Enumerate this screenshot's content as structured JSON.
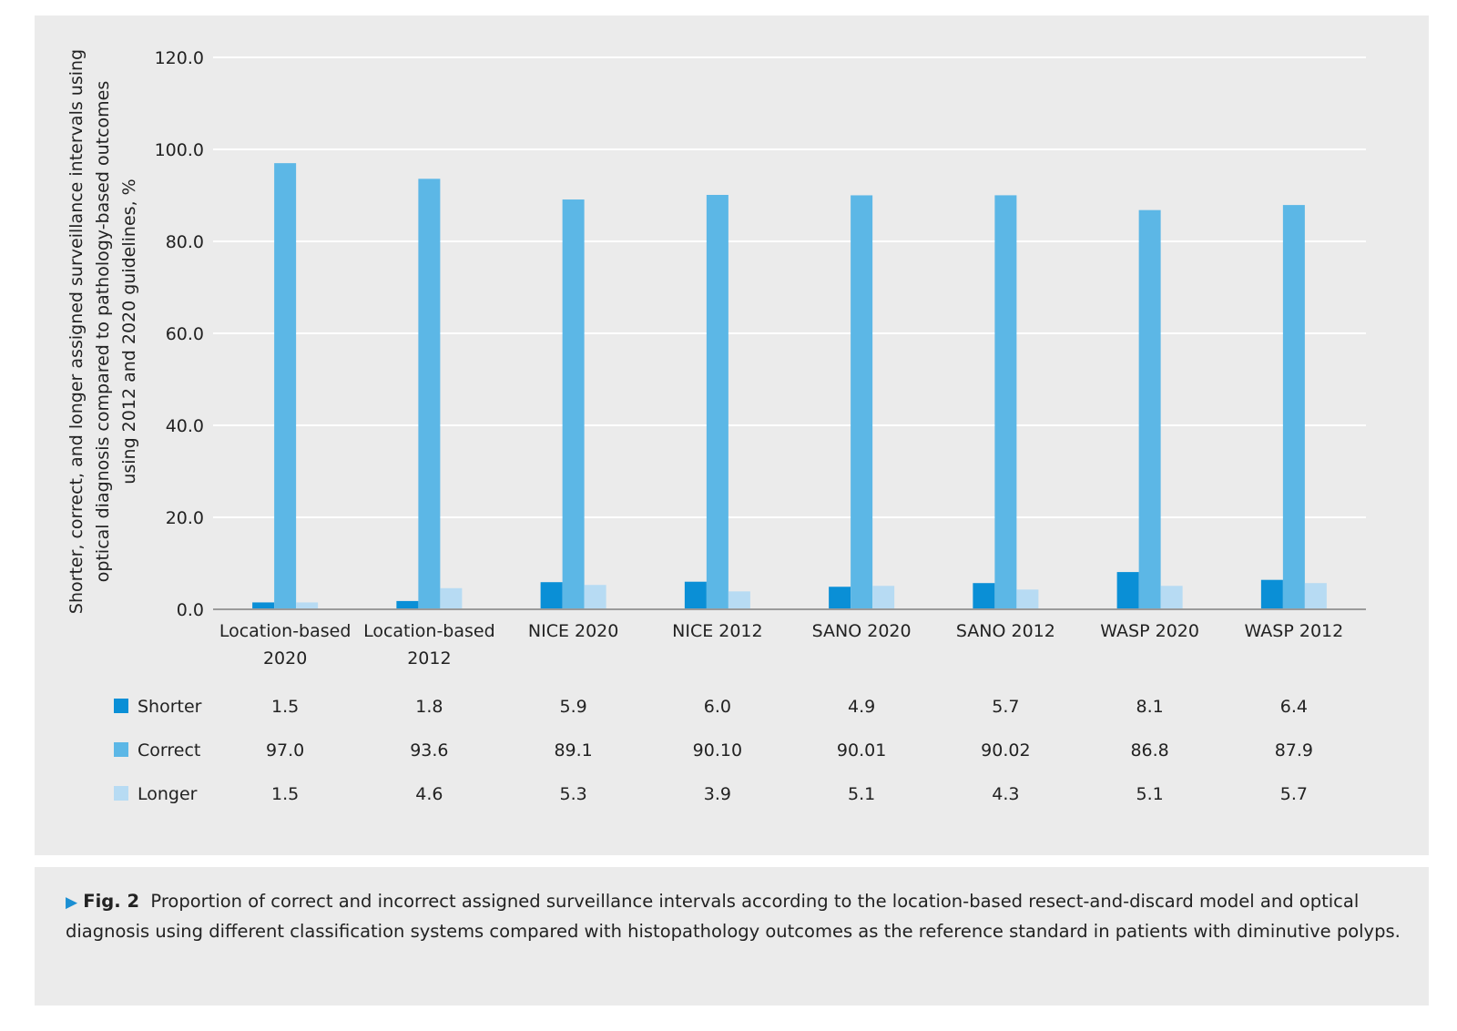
{
  "chart_data": {
    "type": "bar",
    "title": "",
    "xlabel": "",
    "ylabel_lines": [
      "Shorter, correct, and longer assigned surveillance intervals using",
      "optical diagnosis compared to pathology-based outcomes",
      "using 2012 and 2020 guidelines, %"
    ],
    "ylim": [
      0,
      120
    ],
    "yticks": [
      "0.0",
      "20.0",
      "40.0",
      "60.0",
      "80.0",
      "100.0",
      "120.0"
    ],
    "grid": true,
    "categories": [
      [
        "Location-based",
        "2020"
      ],
      [
        "Location-based",
        "2012"
      ],
      [
        "NICE 2020"
      ],
      [
        "NICE 2012"
      ],
      [
        "SANO 2020"
      ],
      [
        "SANO 2012"
      ],
      [
        "WASP 2020"
      ],
      [
        "WASP 2012"
      ]
    ],
    "series": [
      {
        "name": "Shorter",
        "color": "#0a8fd6",
        "values": [
          1.5,
          1.8,
          5.9,
          6.0,
          4.9,
          5.7,
          8.1,
          6.4
        ],
        "labels": [
          "1.5",
          "1.8",
          "5.9",
          "6.0",
          "4.9",
          "5.7",
          "8.1",
          "6.4"
        ]
      },
      {
        "name": "Correct",
        "color": "#5cb7e6",
        "values": [
          97.0,
          93.6,
          89.1,
          90.1,
          90.01,
          90.02,
          86.8,
          87.9
        ],
        "labels": [
          "97.0",
          "93.6",
          "89.1",
          "90.10",
          "90.01",
          "90.02",
          "86.8",
          "87.9"
        ]
      },
      {
        "name": "Longer",
        "color": "#b7dbf3",
        "values": [
          1.5,
          4.6,
          5.3,
          3.9,
          5.1,
          4.3,
          5.1,
          5.7
        ],
        "labels": [
          "1.5",
          "4.6",
          "5.3",
          "3.9",
          "5.1",
          "4.3",
          "5.1",
          "5.7"
        ]
      }
    ]
  },
  "caption": {
    "arrow": "▶",
    "fig_label": "Fig. 2",
    "text": "Proportion of correct and incorrect assigned surveillance intervals according to the location-based resect-and-discard model and optical diagnosis using different classification systems compared with histopathology outcomes as the reference standard in patients with diminutive polyps."
  }
}
